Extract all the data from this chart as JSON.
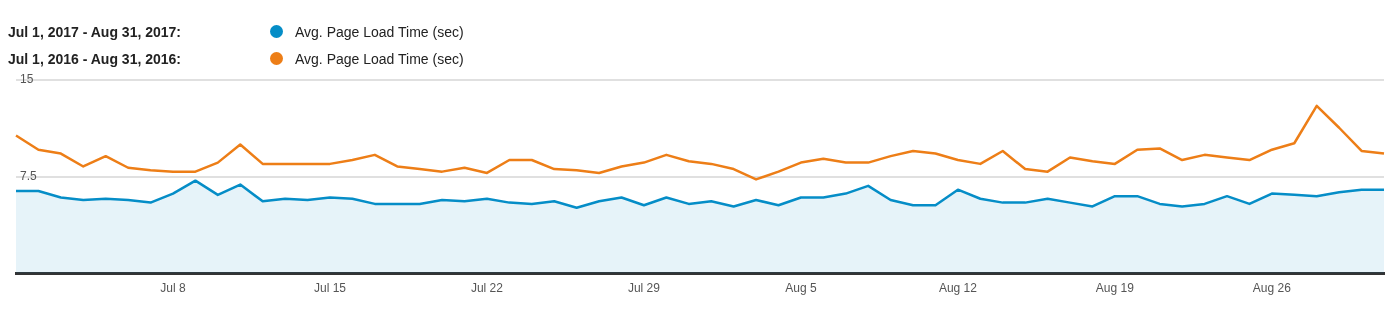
{
  "chart_data": {
    "type": "line",
    "categories": [
      null,
      null,
      null,
      null,
      null,
      null,
      null,
      "Jul 8",
      null,
      null,
      null,
      null,
      null,
      null,
      "Jul 15",
      null,
      null,
      null,
      null,
      null,
      null,
      "Jul 22",
      null,
      null,
      null,
      null,
      null,
      null,
      "Jul 29",
      null,
      null,
      null,
      null,
      null,
      null,
      "Aug 5",
      null,
      null,
      null,
      null,
      null,
      null,
      "Aug 12",
      null,
      null,
      null,
      null,
      null,
      null,
      "Aug 19",
      null,
      null,
      null,
      null,
      null,
      null,
      "Aug 26",
      null,
      null,
      null,
      null,
      null
    ],
    "series": [
      {
        "name": "Avg. Page Load Time (sec)",
        "type": "area",
        "color": "#058dc7",
        "values": [
          6.4,
          6.4,
          5.9,
          5.7,
          5.8,
          5.7,
          5.5,
          6.2,
          7.2,
          6.1,
          6.9,
          5.6,
          5.8,
          5.7,
          5.9,
          5.8,
          5.4,
          5.4,
          5.4,
          5.7,
          5.6,
          5.8,
          5.5,
          5.4,
          5.6,
          5.1,
          5.6,
          5.9,
          5.3,
          5.9,
          5.4,
          5.6,
          5.2,
          5.7,
          5.3,
          5.9,
          5.9,
          6.2,
          6.8,
          5.7,
          5.3,
          5.3,
          6.5,
          5.8,
          5.5,
          5.5,
          5.8,
          5.5,
          5.2,
          6.0,
          6.0,
          5.4,
          5.2,
          5.4,
          6.0,
          5.4,
          6.2,
          6.1,
          6.0,
          6.3,
          6.5,
          6.5
        ]
      },
      {
        "name": "Avg. Page Load Time (sec)",
        "type": "line",
        "color": "#ed7e17",
        "values": [
          10.7,
          9.6,
          9.3,
          8.3,
          9.1,
          8.2,
          8.0,
          7.9,
          7.9,
          8.6,
          10.0,
          8.5,
          8.5,
          8.5,
          8.5,
          8.8,
          9.2,
          8.3,
          8.1,
          7.9,
          8.2,
          7.8,
          8.8,
          8.8,
          8.1,
          8.0,
          7.8,
          8.3,
          8.6,
          9.2,
          8.7,
          8.5,
          8.1,
          7.3,
          7.9,
          8.6,
          8.9,
          8.6,
          8.6,
          9.1,
          9.5,
          9.3,
          8.8,
          8.5,
          9.5,
          8.1,
          7.9,
          9.0,
          8.7,
          8.5,
          9.6,
          9.7,
          8.8,
          9.2,
          9.0,
          8.8,
          9.6,
          10.1,
          13.0,
          11.3,
          9.5,
          9.3
        ]
      }
    ],
    "annotations": [
      "Jul 1, 2017 - Aug 31, 2017:",
      "Jul 1, 2016 - Aug 31, 2016:"
    ],
    "ylim": [
      0,
      15
    ],
    "yticks": [
      7.5,
      15
    ],
    "grid": "y",
    "legend": "top left"
  }
}
